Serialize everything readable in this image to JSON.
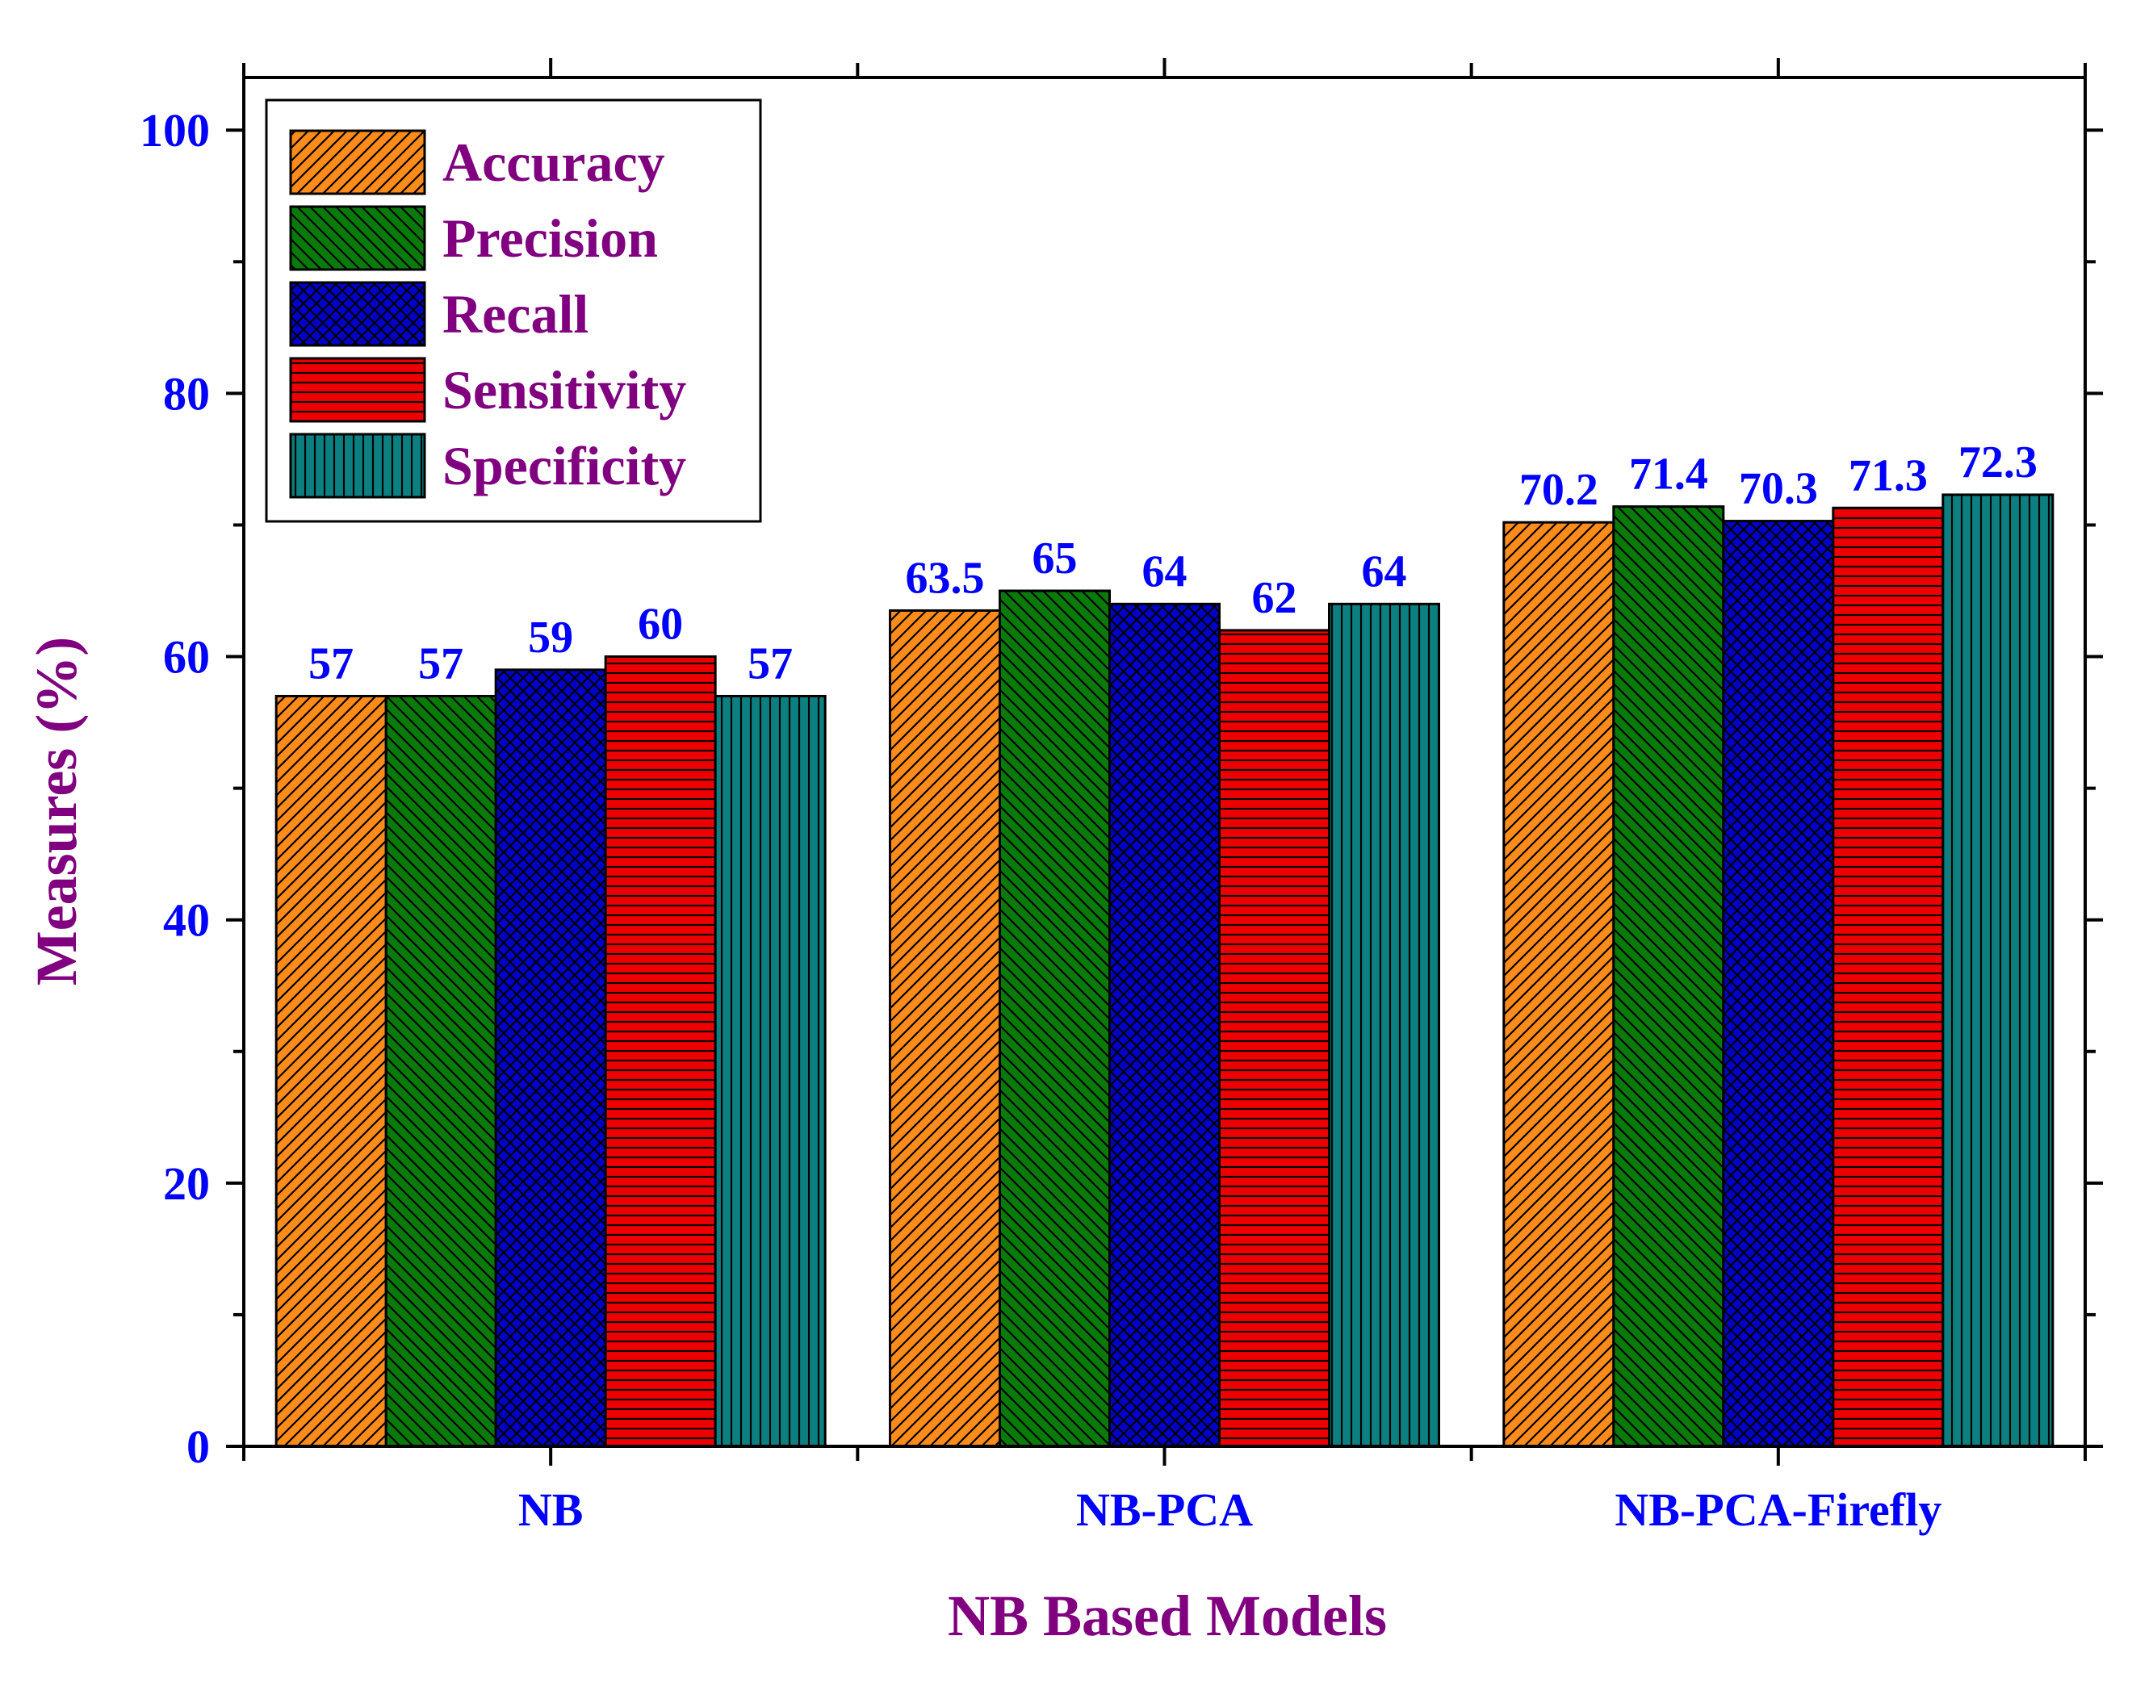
{
  "chart_data": {
    "type": "bar",
    "title": "",
    "xlabel": "NB Based Models",
    "ylabel": "Measures (%)",
    "ylim": [
      0,
      104
    ],
    "yticks": [
      0,
      20,
      40,
      60,
      80,
      100
    ],
    "grid": false,
    "legend_position": "top-left",
    "categories": [
      "NB",
      "NB-PCA",
      "NB-PCA-Firefly"
    ],
    "series": [
      {
        "name": "Accuracy",
        "color": "#FF8C1A",
        "pattern": "diagonal-up",
        "values": [
          57,
          63.5,
          70.2
        ],
        "labels": [
          "57",
          "63.5",
          "70.2"
        ]
      },
      {
        "name": "Precision",
        "color": "#0A7A0A",
        "pattern": "diagonal-down",
        "values": [
          57,
          65,
          71.4
        ],
        "labels": [
          "57",
          "65",
          "71.4"
        ]
      },
      {
        "name": "Recall",
        "color": "#0000CC",
        "pattern": "crosshatch",
        "values": [
          59,
          64,
          70.3
        ],
        "labels": [
          "59",
          "64",
          "70.3"
        ]
      },
      {
        "name": "Sensitivity",
        "color": "#EE0000",
        "pattern": "horizontal",
        "values": [
          60,
          62,
          71.3
        ],
        "labels": [
          "60",
          "62",
          "71.3"
        ]
      },
      {
        "name": "Specificity",
        "color": "#0C8080",
        "pattern": "vertical",
        "values": [
          57,
          64,
          72.3
        ],
        "labels": [
          "57",
          "64",
          "72.3"
        ]
      }
    ],
    "colors": {
      "axis_title": "#800080",
      "legend_text": "#800080",
      "tick_label": "#0000FF",
      "data_label": "#0000FF",
      "axis": "#000000"
    }
  }
}
